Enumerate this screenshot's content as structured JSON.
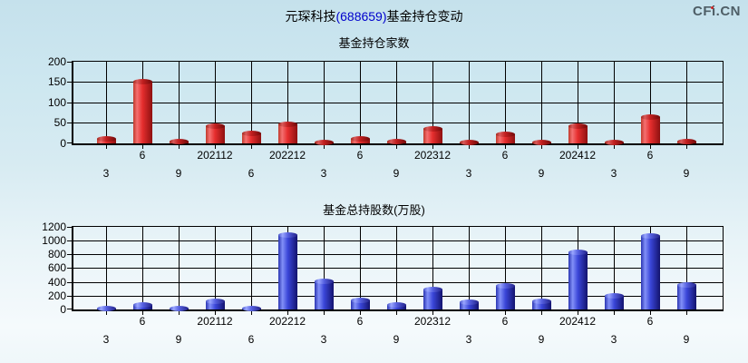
{
  "header": {
    "title_prefix": "元琛科技",
    "title_code": "(688659)",
    "title_suffix": "基金持仓变动",
    "logo_text": "CFi.CN"
  },
  "colors": {
    "title_code": "#0000cc",
    "logo": "#4e5e66",
    "logo_dot": "#cc2222",
    "grid": "#000000",
    "red_bar": "#e62e2e",
    "blue_bar": "#3a46d8",
    "background_top": "#c5e1ec",
    "background_bottom": "#f5fafc"
  },
  "chart_data": [
    {
      "type": "bar",
      "title": "基金持仓家数",
      "categories": [
        "3",
        "6",
        "9",
        "202112",
        "6",
        "202212",
        "3",
        "6",
        "9",
        "202312",
        "3",
        "6",
        "9",
        "202412",
        "3",
        "6",
        "9"
      ],
      "values": [
        10,
        150,
        4,
        43,
        25,
        47,
        3,
        11,
        5,
        35,
        2,
        23,
        2,
        42,
        2,
        64,
        4
      ],
      "ylim": [
        0,
        200
      ],
      "yticks": [
        0,
        50,
        100,
        150,
        200
      ],
      "series_color": "red",
      "grid": true,
      "legend": "none"
    },
    {
      "type": "bar",
      "title": "基金总持股数(万股)",
      "categories": [
        "3",
        "6",
        "9",
        "202112",
        "6",
        "202212",
        "3",
        "6",
        "9",
        "202312",
        "3",
        "6",
        "9",
        "202412",
        "3",
        "6",
        "9"
      ],
      "values": [
        12,
        60,
        12,
        120,
        12,
        1085,
        410,
        130,
        60,
        295,
        100,
        345,
        120,
        830,
        195,
        1070,
        350
      ],
      "ylim": [
        0,
        1200
      ],
      "yticks": [
        0,
        200,
        400,
        600,
        800,
        1000,
        1200
      ],
      "series_color": "blue",
      "grid": true,
      "legend": "none"
    }
  ]
}
